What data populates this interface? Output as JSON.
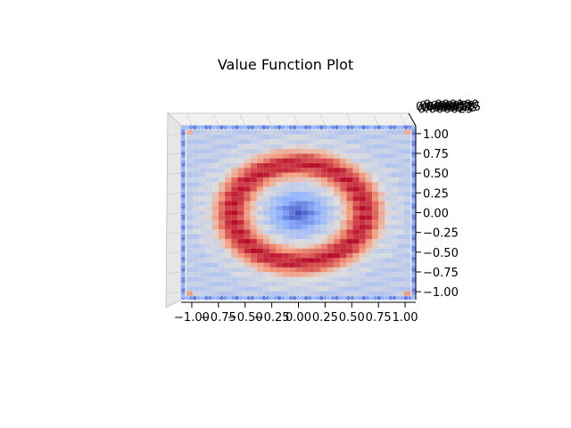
{
  "chart_data": {
    "type": "heatmap",
    "title": "Value Function Plot",
    "xlabel": "",
    "ylabel": "",
    "xlim": [
      -1.1,
      1.1
    ],
    "ylim": [
      -1.1,
      1.1
    ],
    "x_ticks": [
      "−1.00",
      "−0.75",
      "−0.50",
      "−0.25",
      "0.00",
      "0.25",
      "0.50",
      "0.75",
      "1.00"
    ],
    "y_ticks": [
      "1.00",
      "0.75",
      "0.50",
      "0.25",
      "0.00",
      "−0.25",
      "−0.50",
      "−0.75",
      "−1.00"
    ],
    "z_ticks": [
      "0.000000",
      "0.000025",
      "0.000050",
      "0.000075",
      "0.000100",
      "0.000125"
    ],
    "grid_size": 35,
    "surface": {
      "description_of_pattern": "ring",
      "center_value": 0.02,
      "ring_radius": 0.62,
      "ring_width": 0.28,
      "ring_peak_value": 0.95,
      "plateau_value": 0.45,
      "edge_value": 0.05
    },
    "colormap": {
      "name": "coolwarm",
      "stops": [
        "#3b4cc0",
        "#8db0fe",
        "#dddddd",
        "#f49a7b",
        "#b40426"
      ]
    },
    "grid": true,
    "view": "top-down"
  }
}
